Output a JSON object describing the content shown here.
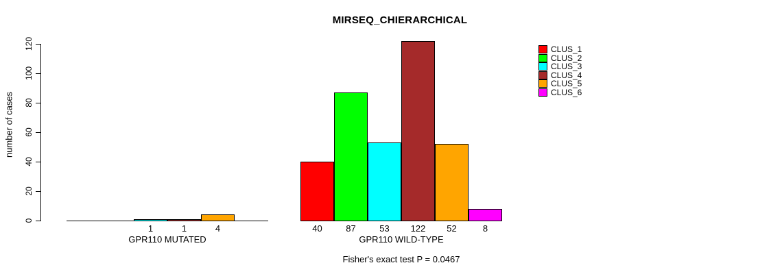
{
  "chart": {
    "title": "MIRSEQ_CHIERARCHICAL",
    "ylabel": "number of cases",
    "annotation": "Fisher's exact test P = 0.0467"
  },
  "chart_data": {
    "type": "bar",
    "title": "MIRSEQ_CHIERARCHICAL",
    "xlabel": "",
    "ylabel": "number of cases",
    "ylim": [
      0,
      124
    ],
    "y_ticks": [
      0,
      20,
      40,
      60,
      80,
      100,
      120
    ],
    "grid": false,
    "legend_position": "right",
    "legend": [
      {
        "label": "CLUS_1",
        "color": "#FF0000"
      },
      {
        "label": "CLUS_2",
        "color": "#00FF00"
      },
      {
        "label": "CLUS_3",
        "color": "#00FFFF"
      },
      {
        "label": "CLUS_4",
        "color": "#A52A2A"
      },
      {
        "label": "CLUS_5",
        "color": "#FFA500"
      },
      {
        "label": "CLUS_6",
        "color": "#FF00FF"
      }
    ],
    "groups": [
      {
        "label": "GPR110 MUTATED",
        "values": [
          0,
          0,
          1,
          1,
          4,
          0
        ]
      },
      {
        "label": "GPR110 WILD-TYPE",
        "values": [
          40,
          87,
          53,
          122,
          52,
          8
        ]
      }
    ],
    "annotation": "Fisher's exact test P = 0.0467",
    "axis_color": "#000000",
    "background": "#FFFFFF"
  }
}
